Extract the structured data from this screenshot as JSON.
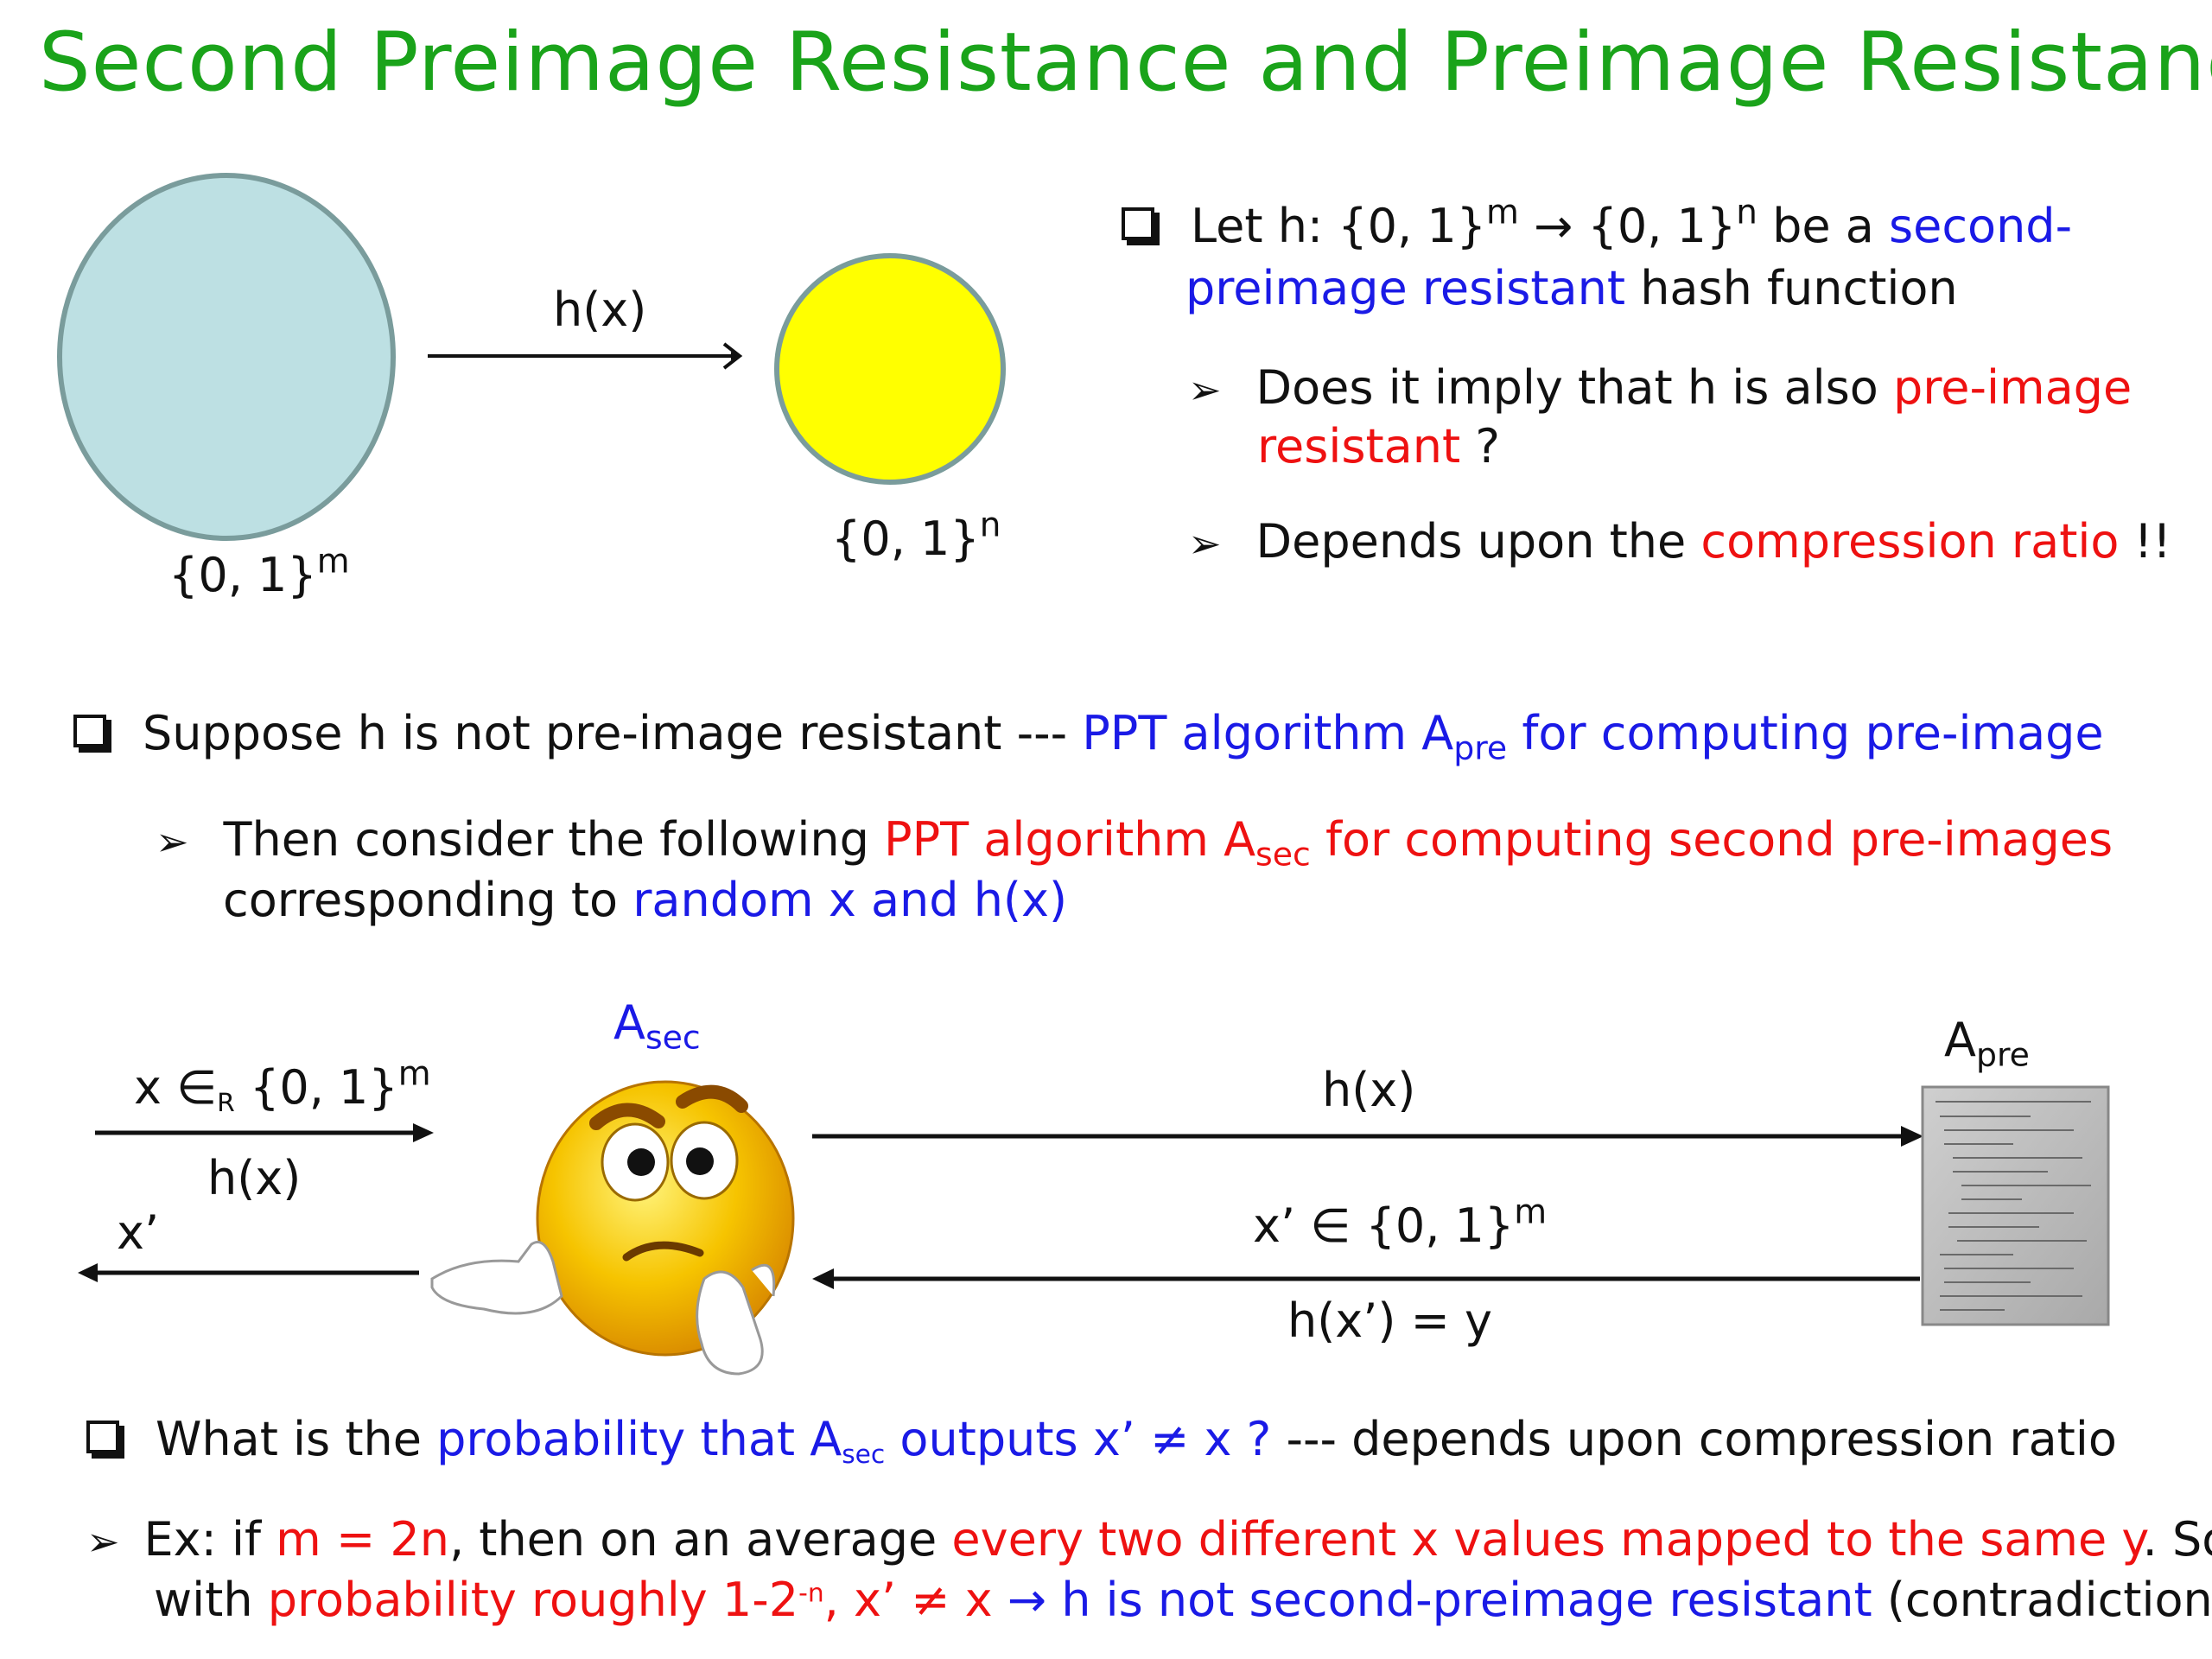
{
  "slide": {
    "title": "Second Preimage Resistance and Preimage Resistance",
    "colors": {
      "title": "#1aa31a",
      "blue": "#1a1ae6",
      "red": "#ee1111",
      "domain_fill": "#bde0e3",
      "range_fill": "#ffff00"
    },
    "diagram": {
      "domain_label": "{0, 1}",
      "domain_exp": "m",
      "range_label": "{0, 1}",
      "range_exp": "n",
      "map_label": "h(x)"
    },
    "bullet1": {
      "t1": "Let h: {0, 1}",
      "t1_exp": "m",
      "t2": " → {0, 1}",
      "t2_exp": "n",
      "t3": " be a ",
      "t4": "second-",
      "t5": "preimage resistant",
      "t6": " hash function"
    },
    "sub1": {
      "t1": "Does it imply that h is also ",
      "t2": "pre-image",
      "t3": "resistant",
      "t4": " ?"
    },
    "sub2": {
      "t1": "Depends upon the ",
      "t2": "compression ratio",
      "t3": " !!"
    },
    "bullet2": {
      "t1": "Suppose h is not pre-image resistant --- ",
      "t2": "PPT algorithm A",
      "t2_sub": "pre",
      "t3": " for computing pre-image"
    },
    "sub3": {
      "t1": "Then consider the following ",
      "t2": "PPT algorithm A",
      "t2_sub": "sec",
      "t3": " for computing second pre-images",
      "t4": "corresponding to ",
      "t5": "random x and h(x)"
    },
    "protocol": {
      "asec_label": "A",
      "asec_sub": "sec",
      "apre_label": "A",
      "apre_sub": "pre",
      "in_x": "x ∈",
      "in_x_sub": "R",
      "in_set": " {0, 1}",
      "in_set_exp": "m",
      "in_hx": "h(x)",
      "out_x": "x’",
      "query_hx": "h(x)",
      "resp_x": "x’ ∈ {0, 1}",
      "resp_x_exp": "m",
      "resp_h": "h(x’) = y"
    },
    "bullet3": {
      "t1": "What is the ",
      "t2": "probability that A",
      "t2_sub": "sec",
      "t3": " outputs x’ ≠ x ?",
      "t4": "  --- depends upon compression ratio"
    },
    "sub4": {
      "t1": "Ex: if ",
      "t2": "m = 2n",
      "t3": ", then on an average ",
      "t4": "every two different x values mapped to the same y",
      "t5": ". So",
      "t6": "with ",
      "t7": "probability roughly 1-2",
      "t7_exp": "-n",
      "t8": ", x’ ≠ x",
      "t9": " → ",
      "t10": "h is not second-preimage resistant",
      "t11": " (contradiction)"
    }
  }
}
